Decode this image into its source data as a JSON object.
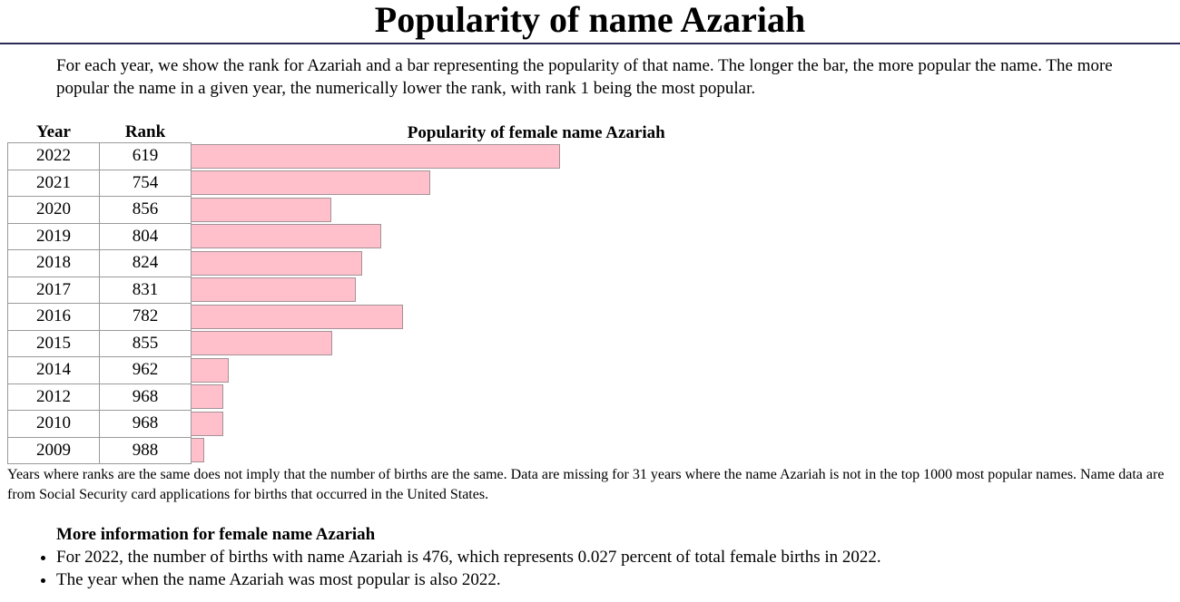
{
  "page": {
    "title": "Popularity of name Azariah",
    "intro": "For each year, we show the rank for Azariah and a bar representing the popularity of that name. The longer the bar, the more popular the name. The more popular the name in a given year, the numerically lower the rank, with rank 1 being the most popular."
  },
  "table": {
    "col_year": "Year",
    "col_rank": "Rank",
    "col_chart": "Popularity of female name Azariah"
  },
  "chart_data": {
    "type": "bar",
    "title": "Popularity of female name Azariah",
    "categories": [
      "2022",
      "2021",
      "2020",
      "2019",
      "2018",
      "2017",
      "2016",
      "2015",
      "2014",
      "2012",
      "2010",
      "2009"
    ],
    "values": [
      619,
      754,
      856,
      804,
      824,
      831,
      782,
      855,
      962,
      968,
      968,
      988
    ],
    "bar_rule": "bar length proportional to (1001 - rank)",
    "bar_color": "#ffc0cb",
    "grid": false,
    "legend": "none"
  },
  "footnote": "Years where ranks are the same does not imply that the number of births are the same. Data are missing for 31 years where the name Azariah is not in the top 1000 most popular names. Name data are from Social Security card applications for births that occurred in the United States.",
  "more_info": {
    "title": "More information for female name Azariah",
    "items": [
      "For 2022, the number of births with name Azariah is 476, which represents 0.027 percent of total female births in 2022.",
      "The year when the name Azariah was most popular is also 2022."
    ]
  }
}
